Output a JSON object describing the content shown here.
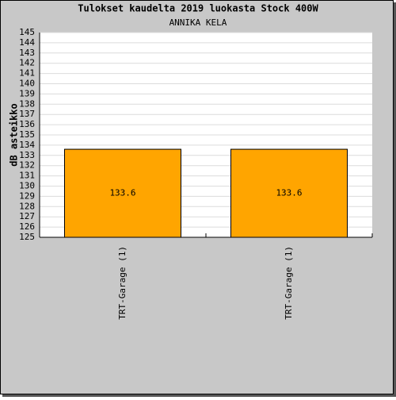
{
  "chart_data": {
    "type": "bar",
    "title": "Tulokset kaudelta 2019 luokasta Stock 400W",
    "subtitle": "ANNIKA KELA",
    "y_label": "dB asteikko",
    "categories": [
      "TRT-Garage (1)",
      "TRT-Garage (1)"
    ],
    "values": [
      133.6,
      133.6
    ],
    "color": "#ffa500",
    "ylim": [
      125,
      145
    ],
    "yticks": [
      125,
      126,
      127,
      128,
      129,
      130,
      131,
      132,
      133,
      134,
      135,
      136,
      137,
      138,
      139,
      140,
      141,
      142,
      143,
      144,
      145
    ],
    "grid": true,
    "show_value_labels": true
  }
}
